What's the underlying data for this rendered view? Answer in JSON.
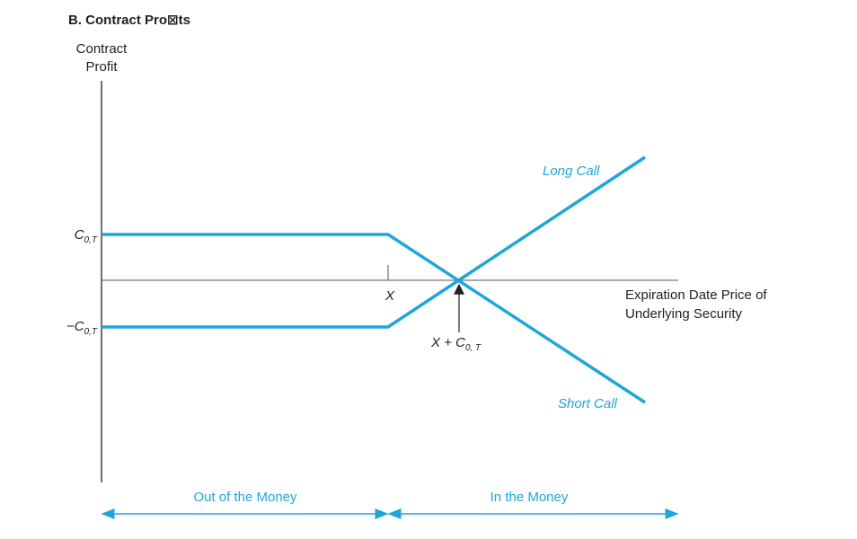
{
  "header": {
    "title": "B. Contract Pro⊠ts"
  },
  "y_axis": {
    "label_line1": "Contract",
    "label_line2": "Profit",
    "upper_tick": {
      "text": "C",
      "sub": "0,T"
    },
    "lower_tick": {
      "text": "−C",
      "sub": "0,T"
    }
  },
  "x_axis": {
    "label_line1": "Expiration Date Price of",
    "label_line2": "Underlying Security",
    "strike": "X",
    "breakeven": {
      "text": "X + C",
      "sub": "0, T"
    }
  },
  "lines": {
    "long_call": "Long Call",
    "short_call": "Short Call"
  },
  "regions": {
    "out": "Out of the Money",
    "in": "In the Money"
  }
}
